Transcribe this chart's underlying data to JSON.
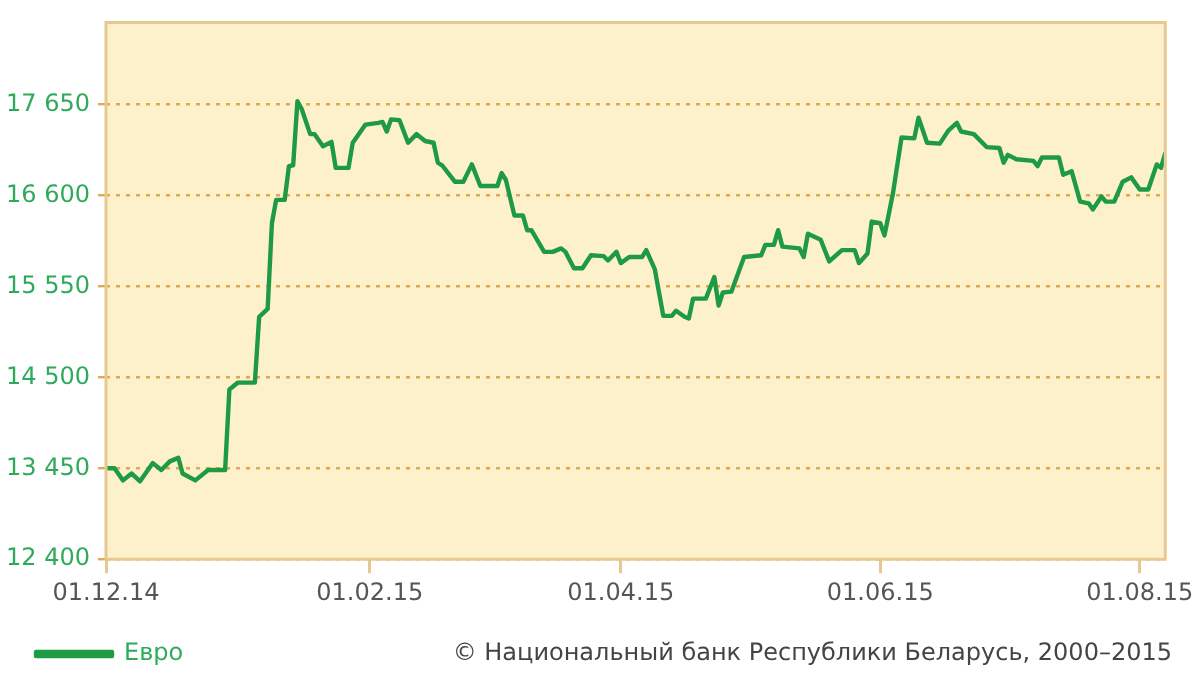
{
  "chart_data": {
    "type": "line",
    "x": [
      "2014-12-01",
      "2014-12-03",
      "2014-12-05",
      "2014-12-07",
      "2014-12-09",
      "2014-12-12",
      "2014-12-14",
      "2014-12-16",
      "2014-12-18",
      "2014-12-19",
      "2014-12-22",
      "2014-12-25",
      "2014-12-29",
      "2014-12-30",
      "2015-01-01",
      "2015-01-05",
      "2015-01-06",
      "2015-01-08",
      "2015-01-09",
      "2015-01-10",
      "2015-01-12",
      "2015-01-13",
      "2015-01-14",
      "2015-01-15",
      "2015-01-16",
      "2015-01-18",
      "2015-01-19",
      "2015-01-21",
      "2015-01-23",
      "2015-01-24",
      "2015-01-27",
      "2015-01-28",
      "2015-01-31",
      "2015-02-03",
      "2015-02-04",
      "2015-02-05",
      "2015-02-06",
      "2015-02-08",
      "2015-02-10",
      "2015-02-12",
      "2015-02-14",
      "2015-02-16",
      "2015-02-17",
      "2015-02-18",
      "2015-02-21",
      "2015-02-23",
      "2015-02-25",
      "2015-02-27",
      "2015-03-03",
      "2015-03-04",
      "2015-03-05",
      "2015-03-07",
      "2015-03-09",
      "2015-03-10",
      "2015-03-11",
      "2015-03-14",
      "2015-03-16",
      "2015-03-18",
      "2015-03-19",
      "2015-03-21",
      "2015-03-23",
      "2015-03-25",
      "2015-03-28",
      "2015-03-29",
      "2015-03-31",
      "2015-04-01",
      "2015-04-03",
      "2015-04-06",
      "2015-04-07",
      "2015-04-09",
      "2015-04-11",
      "2015-04-13",
      "2015-04-14",
      "2015-04-16",
      "2015-04-17",
      "2015-04-18",
      "2015-04-21",
      "2015-04-23",
      "2015-04-24",
      "2015-04-25",
      "2015-04-27",
      "2015-04-30",
      "2015-05-04",
      "2015-05-05",
      "2015-05-07",
      "2015-05-08",
      "2015-05-09",
      "2015-05-13",
      "2015-05-14",
      "2015-05-15",
      "2015-05-18",
      "2015-05-20",
      "2015-05-23",
      "2015-05-26",
      "2015-05-27",
      "2015-05-29",
      "2015-05-30",
      "2015-06-01",
      "2015-06-02",
      "2015-06-04",
      "2015-06-06",
      "2015-06-09",
      "2015-06-10",
      "2015-06-12",
      "2015-06-15",
      "2015-06-17",
      "2015-06-19",
      "2015-06-20",
      "2015-06-23",
      "2015-06-26",
      "2015-06-29",
      "2015-06-30",
      "2015-07-01",
      "2015-07-03",
      "2015-07-07",
      "2015-07-08",
      "2015-07-09",
      "2015-07-13",
      "2015-07-14",
      "2015-07-16",
      "2015-07-18",
      "2015-07-20",
      "2015-07-21",
      "2015-07-23",
      "2015-07-24",
      "2015-07-26",
      "2015-07-28",
      "2015-07-30",
      "2015-08-01",
      "2015-08-03",
      "2015-08-05",
      "2015-08-06",
      "2015-08-07"
    ],
    "series": [
      {
        "name": "Евро",
        "color": "#1e9a44",
        "values": [
          13450,
          13450,
          13310,
          13390,
          13300,
          13510,
          13430,
          13530,
          13570,
          13390,
          13310,
          13430,
          13430,
          14360,
          14440,
          14440,
          15200,
          15290,
          16280,
          16550,
          16550,
          16940,
          16950,
          17690,
          17600,
          17310,
          17310,
          17170,
          17220,
          16920,
          16920,
          17210,
          17420,
          17440,
          17450,
          17340,
          17480,
          17470,
          17210,
          17310,
          17230,
          17210,
          16980,
          16950,
          16760,
          16760,
          16960,
          16710,
          16710,
          16860,
          16780,
          16370,
          16370,
          16200,
          16200,
          15950,
          15950,
          15990,
          15950,
          15760,
          15760,
          15910,
          15900,
          15850,
          15950,
          15820,
          15890,
          15890,
          15970,
          15750,
          15210,
          15210,
          15270,
          15200,
          15180,
          15410,
          15410,
          15660,
          15330,
          15480,
          15490,
          15890,
          15910,
          16030,
          16030,
          16200,
          16010,
          15990,
          15890,
          16160,
          16090,
          15840,
          15970,
          15970,
          15820,
          15930,
          16300,
          16280,
          16140,
          16630,
          17270,
          17260,
          17500,
          17210,
          17200,
          17350,
          17440,
          17340,
          17310,
          17160,
          17150,
          16980,
          17070,
          17020,
          17000,
          16940,
          17040,
          17040,
          16840,
          16880,
          16530,
          16510,
          16440,
          16590,
          16530,
          16530,
          16760,
          16810,
          16670,
          16670,
          16960,
          16920,
          17090
        ]
      }
    ],
    "xlim": [
      "2014-12-01",
      "2015-08-07"
    ],
    "xticks": [
      {
        "value": "2014-12-01",
        "label": "01.12.14"
      },
      {
        "value": "2015-02-01",
        "label": "01.02.15"
      },
      {
        "value": "2015-04-01",
        "label": "01.04.15"
      },
      {
        "value": "2015-06-01",
        "label": "01.06.15"
      },
      {
        "value": "2015-08-01",
        "label": "01.08.15"
      }
    ],
    "ylim": [
      12400,
      18600
    ],
    "yticks": [
      {
        "value": 12400,
        "label": "12 400"
      },
      {
        "value": 13450,
        "label": "13 450"
      },
      {
        "value": 14500,
        "label": "14 500"
      },
      {
        "value": 15550,
        "label": "15 550"
      },
      {
        "value": 16600,
        "label": "16 600"
      },
      {
        "value": 17650,
        "label": "17 650"
      }
    ],
    "grid": "y",
    "legend": "bottom left",
    "marker": "none",
    "line_style": "solid",
    "annotations": [
      "© Национальный банк Республики Беларусь, 2000–2015"
    ]
  }
}
